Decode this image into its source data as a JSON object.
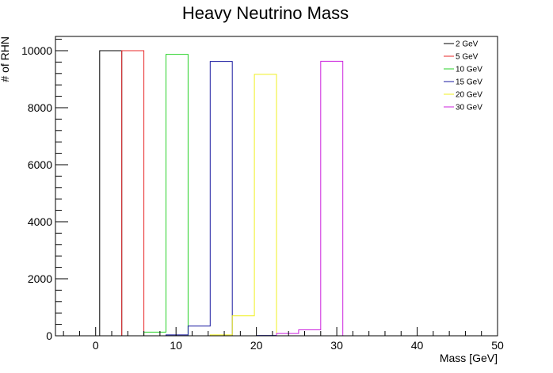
{
  "chart_data": {
    "type": "histogram",
    "title": "Heavy Neutrino Mass",
    "xlabel": "Mass [GeV]",
    "ylabel": "# of RHN",
    "xlim": [
      -5,
      50
    ],
    "ylim": [
      0,
      10500
    ],
    "x_ticks": [
      0,
      10,
      20,
      30,
      40,
      50
    ],
    "y_ticks": [
      0,
      2000,
      4000,
      6000,
      8000,
      10000
    ],
    "bin_width": 2.75,
    "legend_position": "top-right",
    "grid": false,
    "series": [
      {
        "name": "2 GeV",
        "color": "#000000",
        "bins": [
          [
            -5,
            0.5,
            0
          ],
          [
            0.5,
            3.25,
            10000
          ],
          [
            3.25,
            14.25,
            0
          ],
          [
            14.25,
            17,
            0
          ]
        ]
      },
      {
        "name": "5 GeV",
        "color": "#e8282a",
        "bins": [
          [
            -5,
            3.25,
            0
          ],
          [
            3.25,
            6,
            10000
          ],
          [
            6,
            50,
            0
          ]
        ]
      },
      {
        "name": "10 GeV",
        "color": "#28d228",
        "bins": [
          [
            -5,
            6,
            0
          ],
          [
            6,
            8.75,
            130
          ],
          [
            8.75,
            11.5,
            9870
          ],
          [
            11.5,
            50,
            0
          ]
        ]
      },
      {
        "name": "15 GeV",
        "color": "#1a1aa0",
        "bins": [
          [
            -5,
            8.75,
            0
          ],
          [
            8.75,
            11.5,
            30
          ],
          [
            11.5,
            14.25,
            340
          ],
          [
            14.25,
            17,
            9620
          ],
          [
            17,
            20,
            0
          ],
          [
            20,
            22.5,
            10
          ],
          [
            22.5,
            50,
            0
          ]
        ]
      },
      {
        "name": "20 GeV",
        "color": "#f0f020",
        "bins": [
          [
            -5,
            14.25,
            0
          ],
          [
            14.25,
            17,
            30
          ],
          [
            17,
            19.75,
            700
          ],
          [
            19.75,
            22.5,
            9170
          ],
          [
            22.5,
            50,
            0
          ]
        ]
      },
      {
        "name": "30 GeV",
        "color": "#cc22dd",
        "bins": [
          [
            -5,
            22.5,
            0
          ],
          [
            22.5,
            25.25,
            80
          ],
          [
            25.25,
            28,
            210
          ],
          [
            28,
            30.75,
            9630
          ],
          [
            30.75,
            50,
            0
          ]
        ]
      }
    ]
  }
}
